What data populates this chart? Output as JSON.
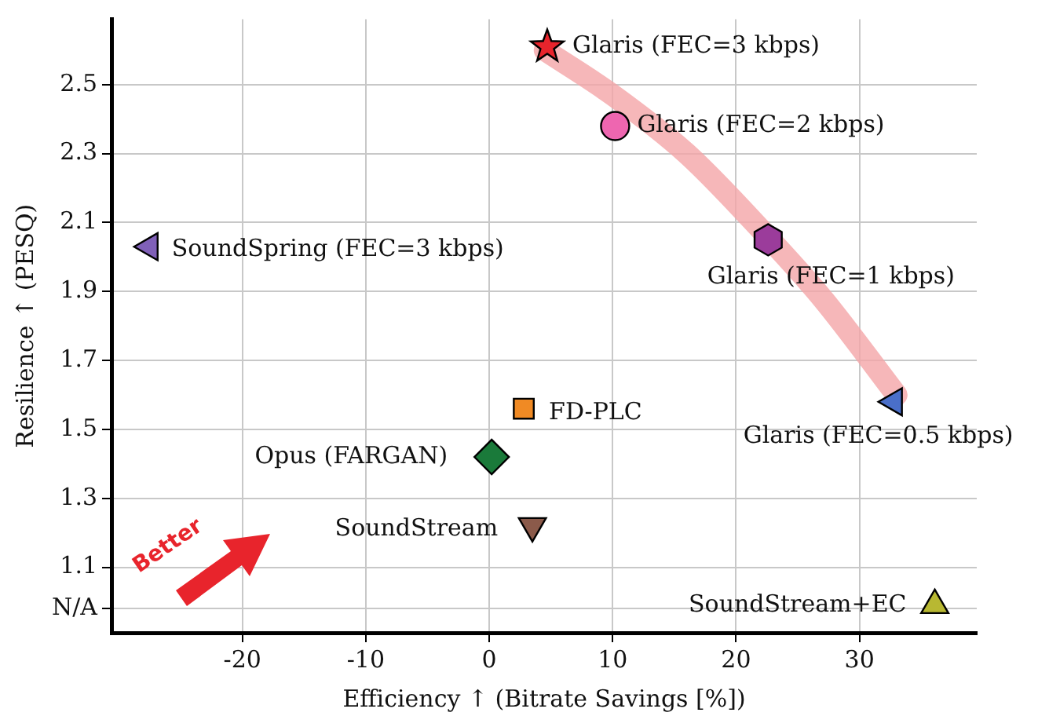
{
  "chart_data": {
    "type": "scatter",
    "xlabel": "Efficiency ↑ (Bitrate Savings [%])",
    "ylabel": "Resilience ↑ (PESQ)",
    "xlim": [
      -30.6,
      39.5
    ],
    "xticks": [
      -20,
      -10,
      0,
      10,
      20,
      30
    ],
    "ylim": [
      0.91,
      2.69
    ],
    "yticks": [
      {
        "value": 0.98,
        "label": "N/A"
      },
      1.1,
      1.3,
      1.5,
      1.7,
      1.9,
      2.1,
      2.3,
      2.5
    ],
    "grid": true,
    "legend": false,
    "annotations": [
      "Better"
    ],
    "series": [
      {
        "type": "line",
        "color": "#f4a5a8",
        "x": [
          4.5,
          10,
          16,
          22,
          27,
          33
        ],
        "values": [
          2.6,
          2.47,
          2.3,
          2.08,
          1.88,
          1.6
        ]
      },
      {
        "name": "Glaris (FEC=3 kbps)",
        "color": "#e8242c",
        "marker": "star",
        "x": [
          4.7
        ],
        "values": [
          2.61
        ]
      },
      {
        "name": "Glaris (FEC=2 kbps)",
        "color": "#ee66b0",
        "marker": "circle",
        "x": [
          10.2
        ],
        "values": [
          2.38
        ]
      },
      {
        "name": "Glaris (FEC=1 kbps)",
        "color": "#9b3c9b",
        "x": [
          22.6
        ],
        "values": [
          2.05
        ]
      },
      {
        "name": "Glaris (FEC=0.5 kbps)",
        "color": "#4a6fc9",
        "marker": "triangle-left",
        "x": [
          32.8
        ],
        "values": [
          1.58
        ]
      },
      {
        "name": "SoundSpring (FEC=3 kbps)",
        "color": "#8060b8",
        "marker": "triangle-left",
        "x": [
          -27.5
        ],
        "values": [
          2.03
        ]
      },
      {
        "name": "FD-PLC",
        "color": "#f08a24",
        "marker": "square",
        "x": [
          2.8
        ],
        "values": [
          1.56
        ]
      },
      {
        "name": "Opus (FARGAN)",
        "color": "#1a7a3a",
        "marker": "diamond",
        "x": [
          0.2
        ],
        "values": [
          1.42
        ]
      },
      {
        "name": "SoundStream",
        "color": "#8b5a4a",
        "marker": "triangle-down",
        "x": [
          3.5
        ],
        "values": [
          1.22
        ]
      },
      {
        "name": "SoundStream+EC",
        "color": "#b8b832",
        "marker": "triangle",
        "x": [
          36.1
        ],
        "values": [
          0.99
        ]
      }
    ]
  }
}
